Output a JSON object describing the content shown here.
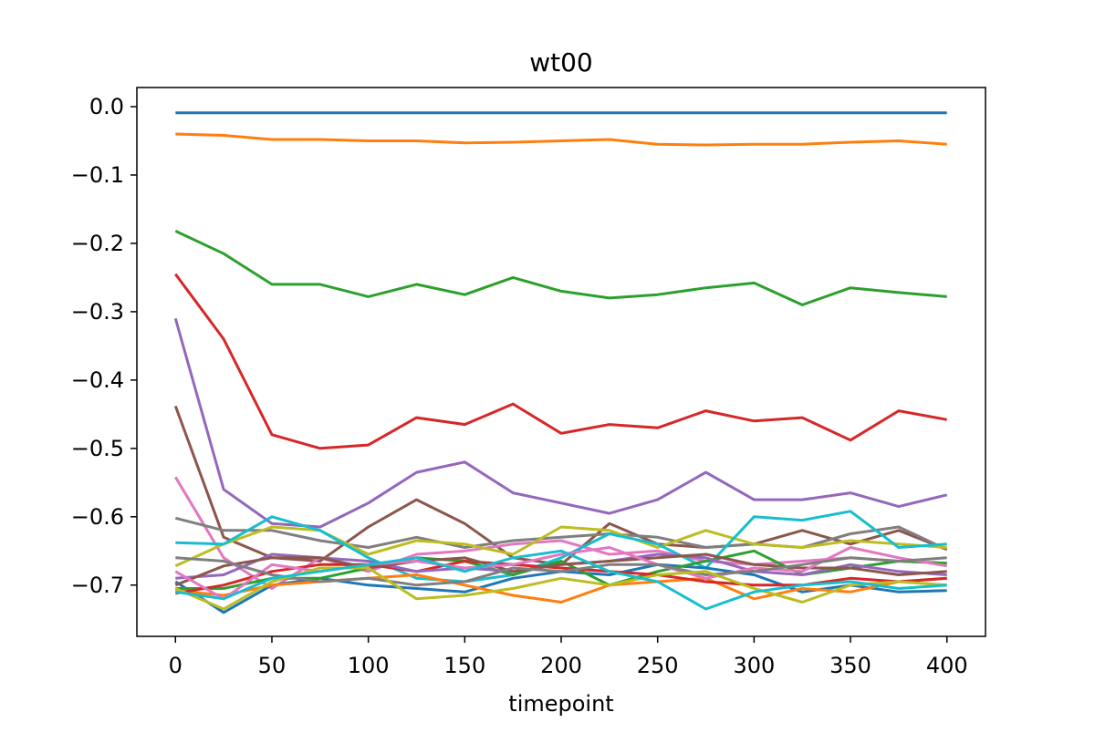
{
  "chart_data": {
    "type": "line",
    "title": "wt00",
    "xlabel": "timepoint",
    "ylabel": "",
    "xlim": [
      -20,
      420
    ],
    "ylim": [
      -0.775,
      0.028
    ],
    "grid": false,
    "legend": "none",
    "xticks": [
      0,
      50,
      100,
      150,
      200,
      250,
      300,
      350,
      400
    ],
    "xtick_labels": [
      "0",
      "50",
      "100",
      "150",
      "200",
      "250",
      "300",
      "350",
      "400"
    ],
    "yticks": [
      0.0,
      -0.1,
      -0.2,
      -0.3,
      -0.4,
      -0.5,
      -0.6,
      -0.7
    ],
    "ytick_labels": [
      "0.0",
      "−0.1",
      "−0.2",
      "−0.3",
      "−0.4",
      "−0.5",
      "−0.6",
      "−0.7"
    ],
    "x": [
      0,
      25,
      50,
      75,
      100,
      125,
      150,
      175,
      200,
      225,
      250,
      275,
      300,
      325,
      350,
      375,
      400
    ],
    "series": [
      {
        "color": "#1f77b4",
        "values": [
          -0.009,
          -0.009,
          -0.009,
          -0.009,
          -0.009,
          -0.009,
          -0.009,
          -0.009,
          -0.009,
          -0.009,
          -0.009,
          -0.009,
          -0.009,
          -0.009,
          -0.009,
          -0.009,
          -0.009
        ]
      },
      {
        "color": "#ff7f0e",
        "values": [
          -0.04,
          -0.042,
          -0.048,
          -0.048,
          -0.05,
          -0.05,
          -0.053,
          -0.052,
          -0.05,
          -0.048,
          -0.055,
          -0.056,
          -0.055,
          -0.055,
          -0.052,
          -0.05,
          -0.055
        ]
      },
      {
        "color": "#2ca02c",
        "values": [
          -0.182,
          -0.215,
          -0.26,
          -0.26,
          -0.278,
          -0.26,
          -0.275,
          -0.25,
          -0.27,
          -0.28,
          -0.275,
          -0.265,
          -0.258,
          -0.29,
          -0.265,
          -0.272,
          -0.278
        ]
      },
      {
        "color": "#d62728",
        "values": [
          -0.245,
          -0.34,
          -0.48,
          -0.5,
          -0.495,
          -0.455,
          -0.465,
          -0.435,
          -0.478,
          -0.465,
          -0.47,
          -0.445,
          -0.46,
          -0.455,
          -0.488,
          -0.445,
          -0.458
        ]
      },
      {
        "color": "#9467bd",
        "values": [
          -0.31,
          -0.56,
          -0.61,
          -0.615,
          -0.58,
          -0.535,
          -0.52,
          -0.565,
          -0.58,
          -0.595,
          -0.575,
          -0.535,
          -0.575,
          -0.575,
          -0.565,
          -0.585,
          -0.568
        ]
      },
      {
        "color": "#8c564b",
        "values": [
          -0.438,
          -0.63,
          -0.66,
          -0.665,
          -0.615,
          -0.575,
          -0.61,
          -0.66,
          -0.67,
          -0.61,
          -0.64,
          -0.645,
          -0.64,
          -0.62,
          -0.64,
          -0.62,
          -0.648
        ]
      },
      {
        "color": "#e377c2",
        "values": [
          -0.542,
          -0.66,
          -0.705,
          -0.66,
          -0.68,
          -0.655,
          -0.65,
          -0.64,
          -0.635,
          -0.655,
          -0.65,
          -0.665,
          -0.67,
          -0.665,
          -0.66,
          -0.665,
          -0.668
        ]
      },
      {
        "color": "#7f7f7f",
        "values": [
          -0.602,
          -0.62,
          -0.62,
          -0.635,
          -0.645,
          -0.63,
          -0.645,
          -0.635,
          -0.63,
          -0.625,
          -0.63,
          -0.645,
          -0.64,
          -0.645,
          -0.625,
          -0.615,
          -0.648
        ]
      },
      {
        "color": "#bcbd22",
        "values": [
          -0.672,
          -0.64,
          -0.615,
          -0.62,
          -0.655,
          -0.635,
          -0.64,
          -0.655,
          -0.615,
          -0.62,
          -0.645,
          -0.62,
          -0.64,
          -0.645,
          -0.635,
          -0.64,
          -0.645
        ]
      },
      {
        "color": "#17becf",
        "values": [
          -0.638,
          -0.64,
          -0.6,
          -0.62,
          -0.66,
          -0.69,
          -0.695,
          -0.685,
          -0.66,
          -0.625,
          -0.64,
          -0.675,
          -0.6,
          -0.605,
          -0.592,
          -0.645,
          -0.64
        ]
      },
      {
        "color": "#1f77b4",
        "values": [
          -0.695,
          -0.74,
          -0.7,
          -0.69,
          -0.7,
          -0.705,
          -0.71,
          -0.69,
          -0.68,
          -0.685,
          -0.67,
          -0.675,
          -0.685,
          -0.71,
          -0.7,
          -0.71,
          -0.708
        ]
      },
      {
        "color": "#ff7f0e",
        "values": [
          -0.708,
          -0.715,
          -0.7,
          -0.695,
          -0.69,
          -0.685,
          -0.7,
          -0.715,
          -0.725,
          -0.7,
          -0.695,
          -0.69,
          -0.72,
          -0.705,
          -0.71,
          -0.695,
          -0.69
        ]
      },
      {
        "color": "#2ca02c",
        "values": [
          -0.705,
          -0.705,
          -0.69,
          -0.69,
          -0.675,
          -0.66,
          -0.665,
          -0.685,
          -0.665,
          -0.7,
          -0.68,
          -0.665,
          -0.65,
          -0.685,
          -0.675,
          -0.665,
          -0.668
        ]
      },
      {
        "color": "#d62728",
        "values": [
          -0.712,
          -0.7,
          -0.68,
          -0.67,
          -0.67,
          -0.68,
          -0.665,
          -0.67,
          -0.675,
          -0.68,
          -0.685,
          -0.695,
          -0.7,
          -0.7,
          -0.69,
          -0.695,
          -0.69
        ]
      },
      {
        "color": "#9467bd",
        "values": [
          -0.69,
          -0.685,
          -0.655,
          -0.66,
          -0.665,
          -0.68,
          -0.675,
          -0.68,
          -0.67,
          -0.665,
          -0.655,
          -0.66,
          -0.68,
          -0.685,
          -0.67,
          -0.68,
          -0.685
        ]
      },
      {
        "color": "#8c564b",
        "values": [
          -0.7,
          -0.672,
          -0.66,
          -0.66,
          -0.675,
          -0.665,
          -0.66,
          -0.68,
          -0.67,
          -0.665,
          -0.66,
          -0.655,
          -0.67,
          -0.675,
          -0.675,
          -0.685,
          -0.68
        ]
      },
      {
        "color": "#e377c2",
        "values": [
          -0.68,
          -0.72,
          -0.67,
          -0.68,
          -0.67,
          -0.665,
          -0.675,
          -0.67,
          -0.655,
          -0.645,
          -0.67,
          -0.69,
          -0.675,
          -0.68,
          -0.645,
          -0.66,
          -0.672
        ]
      },
      {
        "color": "#7f7f7f",
        "values": [
          -0.66,
          -0.665,
          -0.685,
          -0.695,
          -0.69,
          -0.7,
          -0.695,
          -0.675,
          -0.68,
          -0.67,
          -0.67,
          -0.685,
          -0.68,
          -0.67,
          -0.66,
          -0.665,
          -0.66
        ]
      },
      {
        "color": "#bcbd22",
        "values": [
          -0.705,
          -0.735,
          -0.695,
          -0.675,
          -0.675,
          -0.72,
          -0.715,
          -0.705,
          -0.69,
          -0.7,
          -0.685,
          -0.68,
          -0.705,
          -0.725,
          -0.7,
          -0.695,
          -0.7
        ]
      },
      {
        "color": "#17becf",
        "values": [
          -0.71,
          -0.72,
          -0.69,
          -0.68,
          -0.67,
          -0.66,
          -0.68,
          -0.66,
          -0.65,
          -0.68,
          -0.695,
          -0.735,
          -0.71,
          -0.7,
          -0.695,
          -0.705,
          -0.7
        ]
      }
    ]
  }
}
